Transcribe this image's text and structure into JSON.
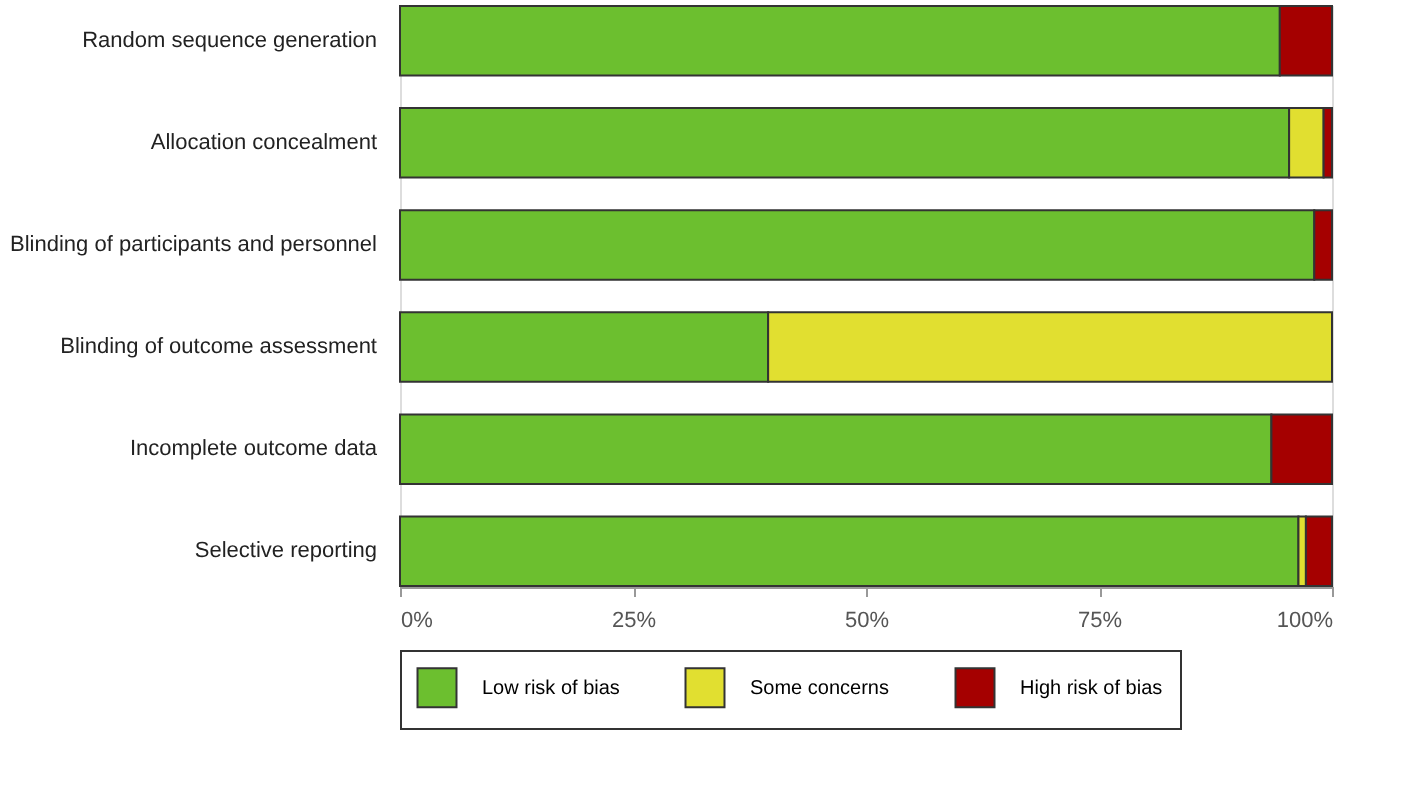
{
  "chart_data": {
    "type": "bar",
    "orientation": "horizontal",
    "stacked": true,
    "categories": [
      "Random sequence generation",
      "Allocation concealment",
      "Blinding of participants and personnel",
      "Blinding of outcome assessment",
      "Incomplete outcome data",
      "Selective reporting"
    ],
    "series": [
      {
        "name": "Low risk of bias",
        "color": "#6cbf2f",
        "values": [
          94.4,
          95.4,
          98.1,
          39.5,
          93.5,
          96.4
        ]
      },
      {
        "name": "Some concerns",
        "color": "#e1df30",
        "values": [
          null,
          3.7,
          null,
          60.5,
          null,
          0.8
        ]
      },
      {
        "name": "High risk of bias",
        "color": "#a50000",
        "values": [
          5.6,
          0.9,
          1.9,
          null,
          6.5,
          2.8
        ]
      }
    ],
    "xlim": [
      0,
      100
    ],
    "xticks": [
      {
        "value": 0,
        "label": "0%"
      },
      {
        "value": 25,
        "label": "25%"
      },
      {
        "value": 50,
        "label": "50%"
      },
      {
        "value": 75,
        "label": "75%"
      },
      {
        "value": 100,
        "label": "100%"
      }
    ],
    "legend": "bottom",
    "grid": false
  }
}
